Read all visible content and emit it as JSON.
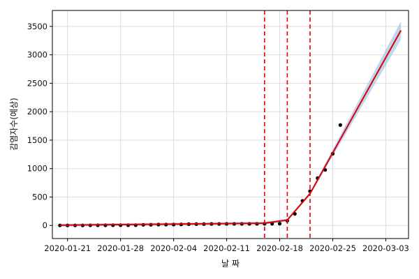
{
  "chart_data": {
    "type": "line",
    "title": "",
    "xlabel": "날 짜",
    "ylabel": "감염자수(예상)",
    "x_range": [
      "2020-01-19",
      "2020-03-06"
    ],
    "ylim": [
      -230,
      3780
    ],
    "grid": true,
    "x_ticks": [
      "2020-01-21",
      "2020-01-28",
      "2020-02-04",
      "2020-02-11",
      "2020-02-18",
      "2020-02-25",
      "2020-03-03"
    ],
    "y_ticks": [
      0,
      500,
      1000,
      1500,
      2000,
      2500,
      3000,
      3500
    ],
    "colors": {
      "trend": "#dd0000",
      "band": "#a8c8e8",
      "points": "#000000",
      "changepoints": "#ee0000",
      "grid": "#dddddd"
    },
    "changepoints": [
      "2020-02-16",
      "2020-02-19",
      "2020-02-22"
    ],
    "series": [
      {
        "values": [
          {
            "x": "2020-01-20",
            "y": 1
          },
          {
            "x": "2020-01-21",
            "y": 1
          },
          {
            "x": "2020-01-22",
            "y": 1
          },
          {
            "x": "2020-01-23",
            "y": 1
          },
          {
            "x": "2020-01-24",
            "y": 2
          },
          {
            "x": "2020-01-25",
            "y": 2
          },
          {
            "x": "2020-01-26",
            "y": 3
          },
          {
            "x": "2020-01-27",
            "y": 4
          },
          {
            "x": "2020-01-28",
            "y": 4
          },
          {
            "x": "2020-01-29",
            "y": 4
          },
          {
            "x": "2020-01-30",
            "y": 4
          },
          {
            "x": "2020-01-31",
            "y": 11
          },
          {
            "x": "2020-02-01",
            "y": 12
          },
          {
            "x": "2020-02-02",
            "y": 15
          },
          {
            "x": "2020-02-03",
            "y": 15
          },
          {
            "x": "2020-02-04",
            "y": 16
          },
          {
            "x": "2020-02-05",
            "y": 18
          },
          {
            "x": "2020-02-06",
            "y": 23
          },
          {
            "x": "2020-02-07",
            "y": 24
          },
          {
            "x": "2020-02-08",
            "y": 24
          },
          {
            "x": "2020-02-09",
            "y": 27
          },
          {
            "x": "2020-02-10",
            "y": 27
          },
          {
            "x": "2020-02-11",
            "y": 28
          },
          {
            "x": "2020-02-12",
            "y": 28
          },
          {
            "x": "2020-02-13",
            "y": 28
          },
          {
            "x": "2020-02-14",
            "y": 28
          },
          {
            "x": "2020-02-15",
            "y": 28
          },
          {
            "x": "2020-02-16",
            "y": 29
          },
          {
            "x": "2020-02-17",
            "y": 30
          },
          {
            "x": "2020-02-18",
            "y": 31
          },
          {
            "x": "2020-02-19",
            "y": 82
          },
          {
            "x": "2020-02-20",
            "y": 204
          },
          {
            "x": "2020-02-21",
            "y": 433
          },
          {
            "x": "2020-02-22",
            "y": 602
          },
          {
            "x": "2020-02-23",
            "y": 833
          },
          {
            "x": "2020-02-24",
            "y": 977
          },
          {
            "x": "2020-02-25",
            "y": 1261
          },
          {
            "x": "2020-02-26",
            "y": 1766
          }
        ]
      }
    ],
    "trend": [
      {
        "x": "2020-01-20",
        "y": 5,
        "lower": -20,
        "upper": 30
      },
      {
        "x": "2020-02-16",
        "y": 40,
        "lower": 15,
        "upper": 65
      },
      {
        "x": "2020-02-19",
        "y": 95,
        "lower": 70,
        "upper": 120
      },
      {
        "x": "2020-02-22",
        "y": 560,
        "lower": 535,
        "upper": 585
      },
      {
        "x": "2020-03-05",
        "y": 3430,
        "lower": 3270,
        "upper": 3590
      }
    ]
  }
}
